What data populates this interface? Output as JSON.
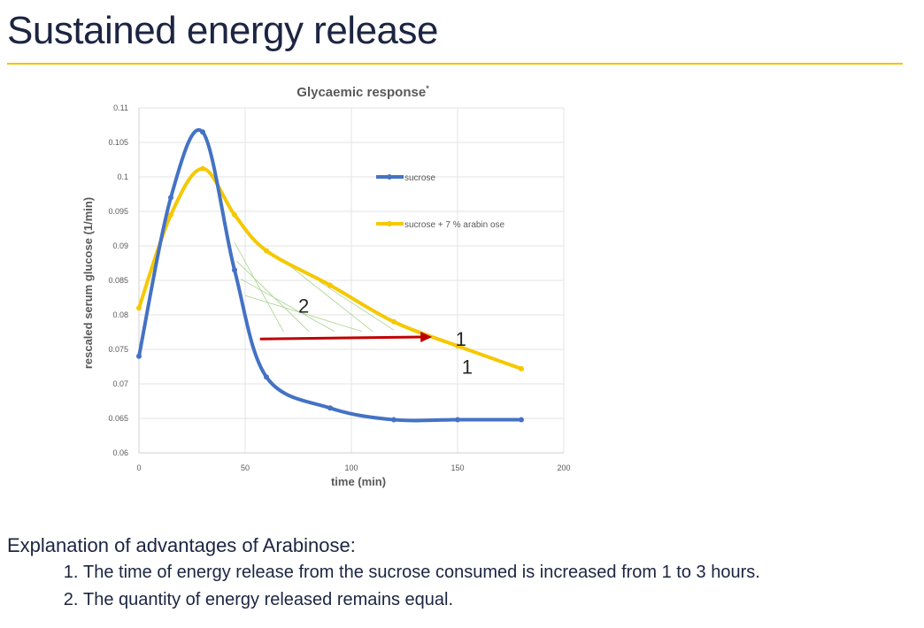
{
  "slide": {
    "title": "Sustained energy release",
    "explanation_heading": "Explanation of advantages of Arabinose:",
    "points": [
      "The time of energy release from the sucrose consumed is increased from 1 to 3 hours.",
      "The quantity of energy released remains equal."
    ]
  },
  "chart_data": {
    "type": "line",
    "title": "Glycaemic response",
    "title_marker": "*",
    "xlabel": "time (min)",
    "ylabel": "rescaled serum glucose (1/min)",
    "xlim": [
      0,
      200
    ],
    "ylim": [
      0.06,
      0.11
    ],
    "xticks": [
      0,
      50,
      100,
      150,
      200
    ],
    "yticks": [
      "0.06",
      "0.065",
      "0.07",
      "0.075",
      "0.08",
      "0.085",
      "0.09",
      "0.095",
      "0.1",
      "0.105",
      "0.11"
    ],
    "grid": true,
    "legend_placement": "right-inside",
    "series": [
      {
        "name": "sucrose",
        "color": "#4472c4",
        "x": [
          0,
          15,
          30,
          45,
          60,
          90,
          120,
          150,
          180
        ],
        "y": [
          0.074,
          0.097,
          0.1065,
          0.0865,
          0.071,
          0.0665,
          0.0648,
          0.0648,
          0.0648
        ]
      },
      {
        "name": "sucrose + 7 % arabin ose",
        "color": "#f5c800",
        "x": [
          0,
          15,
          30,
          45,
          60,
          90,
          120,
          150,
          180
        ],
        "y": [
          0.081,
          0.0945,
          0.1012,
          0.0945,
          0.0893,
          0.0843,
          0.079,
          0.0755,
          0.0722
        ]
      }
    ],
    "annotations": [
      {
        "text": "2",
        "x": 75,
        "y": 0.0803
      },
      {
        "text": "1",
        "x": 149,
        "y": 0.0755
      },
      {
        "text": "1",
        "x": 152,
        "y": 0.0715
      }
    ],
    "arrow": {
      "color": "#c00000",
      "from": [
        57,
        0.0765
      ],
      "to": [
        138,
        0.0768
      ]
    }
  }
}
